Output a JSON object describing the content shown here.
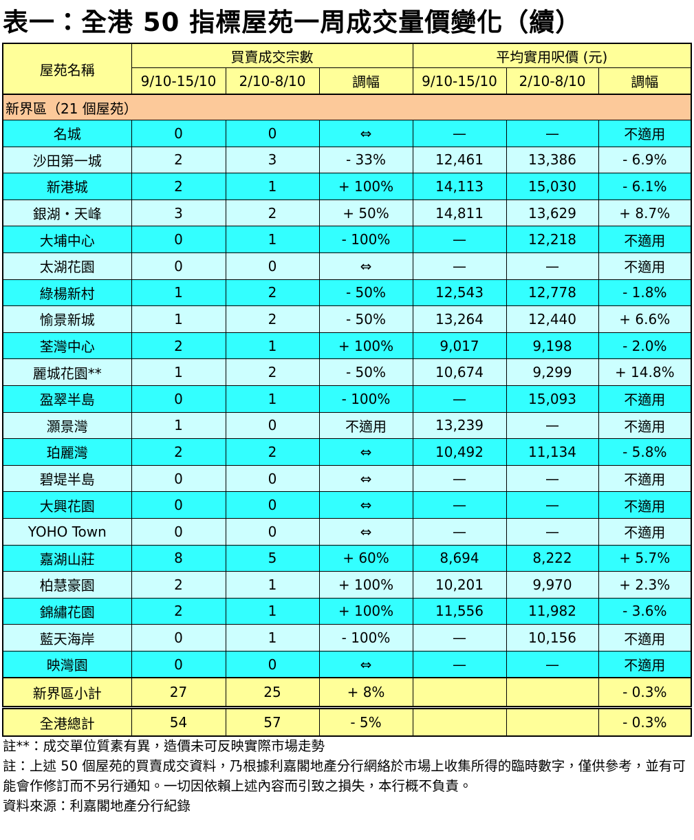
{
  "header": {
    "title": "表一：全港 50 指標屋苑一周成交量價變化（續）"
  },
  "table": {
    "columns": {
      "name": "屋苑名稱",
      "groups": [
        "買賣成交宗數",
        "平均實用呎價 (元)"
      ],
      "sub": [
        "9/10-15/10",
        "2/10-8/10",
        "調幅",
        "9/10-15/10",
        "2/10-8/10",
        "調幅"
      ]
    },
    "section": "新界區（21 個屋苑）",
    "rows": [
      [
        "名城",
        "0",
        "0",
        "⇔",
        "—",
        "—",
        "不適用"
      ],
      [
        "沙田第一城",
        "2",
        "3",
        "- 33%",
        "12,461",
        "13,386",
        "- 6.9%"
      ],
      [
        "新港城",
        "2",
        "1",
        "+ 100%",
        "14,113",
        "15,030",
        "- 6.1%"
      ],
      [
        "銀湖・天峰",
        "3",
        "2",
        "+ 50%",
        "14,811",
        "13,629",
        "+ 8.7%"
      ],
      [
        "大埔中心",
        "0",
        "1",
        "- 100%",
        "—",
        "12,218",
        "不適用"
      ],
      [
        "太湖花園",
        "0",
        "0",
        "⇔",
        "—",
        "—",
        "不適用"
      ],
      [
        "綠楊新村",
        "1",
        "2",
        "- 50%",
        "12,543",
        "12,778",
        "- 1.8%"
      ],
      [
        "愉景新城",
        "1",
        "2",
        "- 50%",
        "13,264",
        "12,440",
        "+ 6.6%"
      ],
      [
        "荃灣中心",
        "2",
        "1",
        "+ 100%",
        "9,017",
        "9,198",
        "- 2.0%"
      ],
      [
        "麗城花園**",
        "1",
        "2",
        "- 50%",
        "10,674",
        "9,299",
        "+ 14.8%"
      ],
      [
        "盈翠半島",
        "0",
        "1",
        "- 100%",
        "—",
        "15,093",
        "不適用"
      ],
      [
        "灝景灣",
        "1",
        "0",
        "不適用",
        "13,239",
        "—",
        "不適用"
      ],
      [
        "珀麗灣",
        "2",
        "2",
        "⇔",
        "10,492",
        "11,134",
        "- 5.8%"
      ],
      [
        "碧堤半島",
        "0",
        "0",
        "⇔",
        "—",
        "—",
        "不適用"
      ],
      [
        "大興花園",
        "0",
        "0",
        "⇔",
        "—",
        "—",
        "不適用"
      ],
      [
        "YOHO Town",
        "0",
        "0",
        "⇔",
        "—",
        "—",
        "不適用"
      ],
      [
        "嘉湖山莊",
        "8",
        "5",
        "+ 60%",
        "8,694",
        "8,222",
        "+ 5.7%"
      ],
      [
        "柏慧豪園",
        "2",
        "1",
        "+ 100%",
        "10,201",
        "9,970",
        "+ 2.3%"
      ],
      [
        "錦繡花園",
        "2",
        "1",
        "+ 100%",
        "11,556",
        "11,982",
        "- 3.6%"
      ],
      [
        "藍天海岸",
        "0",
        "1",
        "- 100%",
        "—",
        "10,156",
        "不適用"
      ],
      [
        "映灣園",
        "0",
        "0",
        "⇔",
        "—",
        "—",
        "不適用"
      ]
    ],
    "subtotal": [
      "新界區小計",
      "27",
      "25",
      "+ 8%",
      null,
      null,
      "- 0.3%"
    ],
    "total": [
      "全港總計",
      "54",
      "57",
      "- 5%",
      null,
      null,
      "- 0.3%"
    ]
  },
  "notes": [
    "註**：成交單位質素有異，造價未可反映實際市場走勢",
    "註：上述 50 個屋苑的買賣成交資料，乃根據利嘉閣地產分行網絡於市場上收集所得的臨時數字，僅供參考，並有可能會作修訂而不另行通知。一切因依賴上述內容而引致之損失，本行概不負責。",
    "資料來源：利嘉閣地產分行紀錄"
  ]
}
